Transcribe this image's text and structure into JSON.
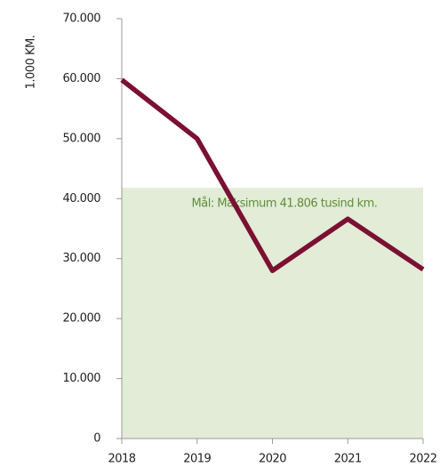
{
  "chart_data": {
    "type": "line",
    "y_axis_label": "1.000 KM.",
    "categories": [
      "2018",
      "2019",
      "2020",
      "2021",
      "2022"
    ],
    "series": [
      {
        "name": "Km",
        "color": "#7b1033",
        "values": [
          59800,
          50000,
          28000,
          36600,
          28200
        ]
      }
    ],
    "target": {
      "value": 41806,
      "color": "#e2ecd6",
      "label": "Mål: Maksimum 41.806 tusind km.",
      "label_color": "#5e8d3c"
    },
    "ylim": [
      0,
      70000
    ],
    "yticks": [
      0,
      {
        "value": 10000,
        "label": "10.000"
      },
      {
        "value": 20000,
        "label": "20.000"
      },
      {
        "value": 30000,
        "label": "30.000"
      },
      {
        "value": 40000,
        "label": "40.000"
      },
      {
        "value": 50000,
        "label": "50.000"
      },
      {
        "value": 60000,
        "label": "60.000"
      },
      {
        "value": 70000,
        "label": "70.000"
      }
    ]
  }
}
